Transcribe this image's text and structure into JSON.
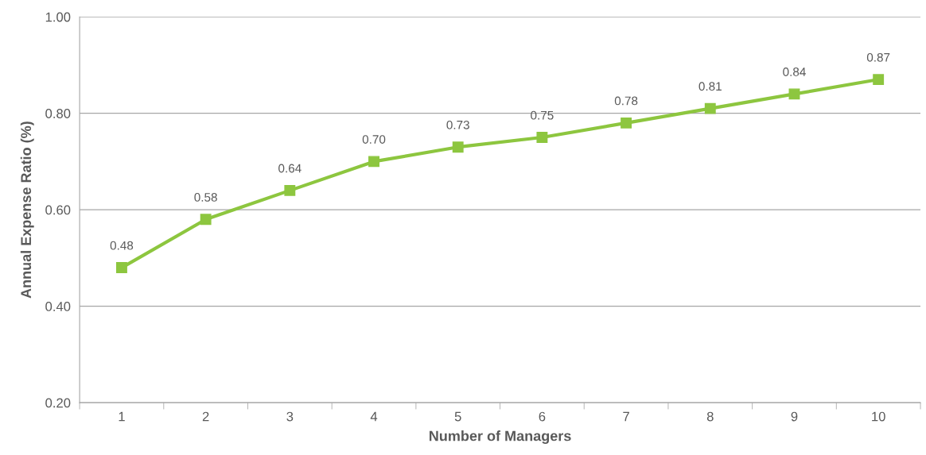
{
  "chart_data": {
    "type": "line",
    "xlabel": "Number of Managers",
    "ylabel": "Annual Expense Ratio (%)",
    "categories": [
      "1",
      "2",
      "3",
      "4",
      "5",
      "6",
      "7",
      "8",
      "9",
      "10"
    ],
    "series": [
      {
        "color": "#8dc63f",
        "values": [
          0.48,
          0.58,
          0.64,
          0.7,
          0.73,
          0.75,
          0.78,
          0.81,
          0.84,
          0.87
        ],
        "value_labels": [
          "0.48",
          "0.58",
          "0.64",
          "0.70",
          "0.73",
          "0.75",
          "0.78",
          "0.81",
          "0.84",
          "0.87"
        ]
      }
    ],
    "ylim": [
      0.2,
      1.0
    ],
    "yticks": [
      {
        "value": 0.2,
        "label": "0.20"
      },
      {
        "value": 0.4,
        "label": "0.40"
      },
      {
        "value": 0.6,
        "label": "0.60"
      },
      {
        "value": 0.8,
        "label": "0.80"
      },
      {
        "value": 1.0,
        "label": "1.00"
      }
    ],
    "grid": "y",
    "marker": "square",
    "line_style": "solid"
  }
}
